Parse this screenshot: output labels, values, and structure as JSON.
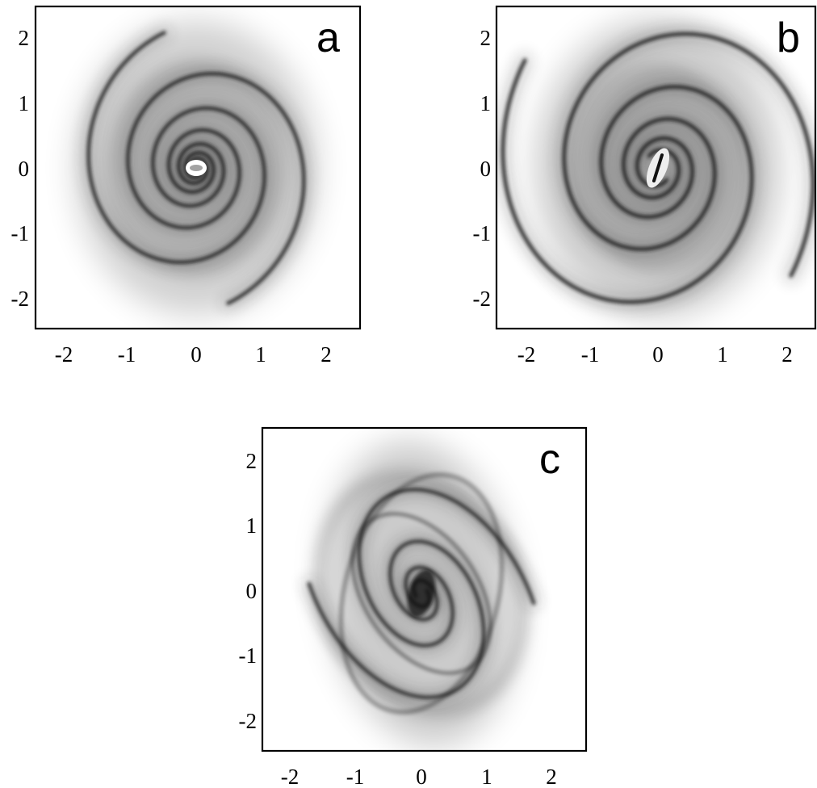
{
  "panels": [
    {
      "id": "a",
      "label": "a",
      "x_ticks": [
        "-2",
        "-1",
        "0",
        "1",
        "2"
      ],
      "y_ticks": [
        "2",
        "1",
        "0",
        "-1",
        "-2"
      ],
      "image": "two-armed logarithmic spiral density map, tightly wound, bright core"
    },
    {
      "id": "b",
      "label": "b",
      "x_ticks": [
        "-2",
        "-1",
        "0",
        "1",
        "2"
      ],
      "y_ticks": [
        "2",
        "1",
        "0",
        "-1",
        "-2"
      ],
      "image": "two-armed spiral density map, looser arms, tilted bright bar at center"
    },
    {
      "id": "c",
      "label": "c",
      "x_ticks": [
        "-2",
        "-1",
        "0",
        "1",
        "2"
      ],
      "y_ticks": [
        "2",
        "1",
        "0",
        "-1",
        "-2"
      ],
      "image": "distorted spiral / elliptical density map with dark central core"
    }
  ],
  "axis": {
    "xlim": [
      -2.5,
      2.5
    ],
    "ylim": [
      -2.5,
      2.5
    ],
    "tick_values": [
      -2,
      -1,
      0,
      1,
      2
    ]
  },
  "colors": {
    "ink": "#000000",
    "background": "#ffffff",
    "density": "#1a1a1a"
  }
}
